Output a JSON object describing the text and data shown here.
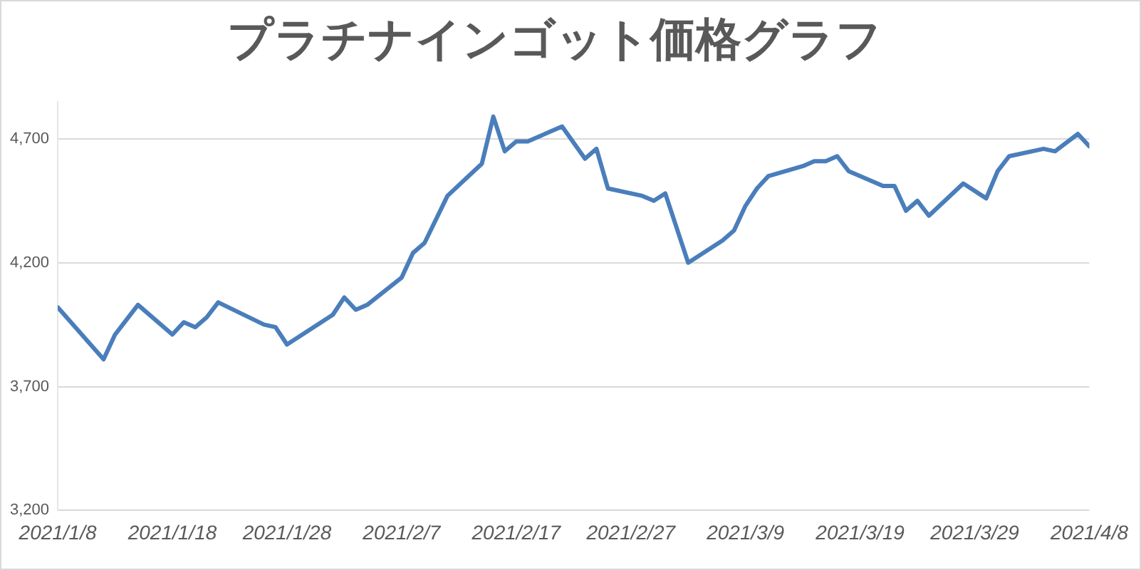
{
  "chart_data": {
    "type": "line",
    "title": "プラチナインゴット価格グラフ",
    "x": [
      "2021-01-08",
      "2021-01-12",
      "2021-01-13",
      "2021-01-15",
      "2021-01-18",
      "2021-01-19",
      "2021-01-20",
      "2021-01-21",
      "2021-01-22",
      "2021-01-26",
      "2021-01-27",
      "2021-01-28",
      "2021-02-01",
      "2021-02-02",
      "2021-02-03",
      "2021-02-04",
      "2021-02-07",
      "2021-02-08",
      "2021-02-09",
      "2021-02-11",
      "2021-02-14",
      "2021-02-15",
      "2021-02-16",
      "2021-02-17",
      "2021-02-18",
      "2021-02-21",
      "2021-02-23",
      "2021-02-24",
      "2021-02-25",
      "2021-02-28",
      "2021-03-01",
      "2021-03-02",
      "2021-03-04",
      "2021-03-07",
      "2021-03-08",
      "2021-03-09",
      "2021-03-10",
      "2021-03-11",
      "2021-03-14",
      "2021-03-15",
      "2021-03-16",
      "2021-03-17",
      "2021-03-18",
      "2021-03-21",
      "2021-03-22",
      "2021-03-23",
      "2021-03-24",
      "2021-03-25",
      "2021-03-28",
      "2021-03-30",
      "2021-03-31",
      "2021-04-01",
      "2021-04-04",
      "2021-04-05",
      "2021-04-07",
      "2021-04-08"
    ],
    "series": [
      {
        "color": "#4a7ebb",
        "values": [
          4020,
          3810,
          3910,
          4030,
          3910,
          3960,
          3940,
          3980,
          4040,
          3950,
          3940,
          3870,
          3990,
          4060,
          4010,
          4030,
          4140,
          4240,
          4280,
          4470,
          4600,
          4790,
          4650,
          4690,
          4690,
          4750,
          4620,
          4660,
          4500,
          4470,
          4450,
          4480,
          4200,
          4290,
          4330,
          4430,
          4500,
          4550,
          4590,
          4610,
          4610,
          4630,
          4570,
          4510,
          4510,
          4410,
          4450,
          4390,
          4520,
          4460,
          4570,
          4630,
          4660,
          4650,
          4720,
          4670
        ]
      }
    ],
    "xlim": [
      "2021-01-08",
      "2021-04-08"
    ],
    "xticks": [
      {
        "value": "2021-01-08",
        "label": "2021/1/8"
      },
      {
        "value": "2021-01-18",
        "label": "2021/1/18"
      },
      {
        "value": "2021-01-28",
        "label": "2021/1/28"
      },
      {
        "value": "2021-02-07",
        "label": "2021/2/7"
      },
      {
        "value": "2021-02-17",
        "label": "2021/2/17"
      },
      {
        "value": "2021-02-27",
        "label": "2021/2/27"
      },
      {
        "value": "2021-03-09",
        "label": "2021/3/9"
      },
      {
        "value": "2021-03-19",
        "label": "2021/3/19"
      },
      {
        "value": "2021-03-29",
        "label": "2021/3/29"
      },
      {
        "value": "2021-04-08",
        "label": "2021/4/8"
      }
    ],
    "ylim": [
      3200,
      4850
    ],
    "yticks": [
      {
        "value": 3200,
        "label": "3,200"
      },
      {
        "value": 3700,
        "label": "3,700"
      },
      {
        "value": 4200,
        "label": "4,200"
      },
      {
        "value": 4700,
        "label": "4,700"
      }
    ],
    "grid": "y",
    "legend": false,
    "marker": "none",
    "line_style": "solid"
  }
}
